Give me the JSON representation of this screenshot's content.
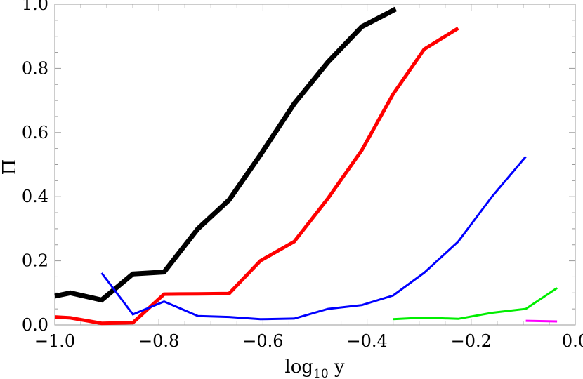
{
  "chart_data": {
    "type": "line",
    "title": "",
    "xlabel": {
      "base": "log",
      "subscript": "10",
      "rest": " y"
    },
    "ylabel": "Π",
    "xlim": [
      -1.0,
      0.0
    ],
    "ylim": [
      0.0,
      1.0
    ],
    "grid": false,
    "legend": "none",
    "x_ticks": [
      {
        "value": -1.0,
        "label": "−1.0"
      },
      {
        "value": -0.8,
        "label": "−0.8"
      },
      {
        "value": -0.6,
        "label": "−0.6"
      },
      {
        "value": -0.4,
        "label": "−0.4"
      },
      {
        "value": -0.2,
        "label": "−0.2"
      },
      {
        "value": 0.0,
        "label": "0.0"
      }
    ],
    "y_ticks": [
      {
        "value": 0.0,
        "label": "0.0"
      },
      {
        "value": 0.2,
        "label": "0.2"
      },
      {
        "value": 0.4,
        "label": "0.4"
      },
      {
        "value": 0.6,
        "label": "0.6"
      },
      {
        "value": 0.8,
        "label": "0.8"
      },
      {
        "value": 1.0,
        "label": "1.0"
      }
    ],
    "series": [
      {
        "color": "#000000",
        "thick": true,
        "points": [
          [
            -1.0,
            0.09
          ],
          [
            -0.97,
            0.1
          ],
          [
            -0.91,
            0.078
          ],
          [
            -0.85,
            0.159
          ],
          [
            -0.79,
            0.165
          ],
          [
            -0.725,
            0.3
          ],
          [
            -0.665,
            0.39
          ],
          [
            -0.605,
            0.53
          ],
          [
            -0.54,
            0.69
          ],
          [
            -0.475,
            0.82
          ],
          [
            -0.41,
            0.93
          ],
          [
            -0.345,
            0.985
          ]
        ]
      },
      {
        "color": "#ff0000",
        "thick": true,
        "points": [
          [
            -1.0,
            0.025
          ],
          [
            -0.97,
            0.022
          ],
          [
            -0.91,
            0.005
          ],
          [
            -0.85,
            0.007
          ],
          [
            -0.79,
            0.096
          ],
          [
            -0.725,
            0.097
          ],
          [
            -0.665,
            0.098
          ],
          [
            -0.605,
            0.2
          ],
          [
            -0.54,
            0.26
          ],
          [
            -0.475,
            0.395
          ],
          [
            -0.41,
            0.545
          ],
          [
            -0.35,
            0.72
          ],
          [
            -0.29,
            0.86
          ],
          [
            -0.225,
            0.925
          ]
        ]
      },
      {
        "color": "#0000ff",
        "thick": false,
        "points": [
          [
            -0.91,
            0.162
          ],
          [
            -0.85,
            0.033
          ],
          [
            -0.79,
            0.073
          ],
          [
            -0.725,
            0.028
          ],
          [
            -0.665,
            0.025
          ],
          [
            -0.605,
            0.018
          ],
          [
            -0.54,
            0.02
          ],
          [
            -0.475,
            0.05
          ],
          [
            -0.41,
            0.062
          ],
          [
            -0.35,
            0.092
          ],
          [
            -0.29,
            0.163
          ],
          [
            -0.225,
            0.26
          ],
          [
            -0.16,
            0.4
          ],
          [
            -0.095,
            0.525
          ]
        ]
      },
      {
        "color": "#00ee00",
        "thick": false,
        "points": [
          [
            -0.35,
            0.018
          ],
          [
            -0.29,
            0.023
          ],
          [
            -0.225,
            0.019
          ],
          [
            -0.16,
            0.038
          ],
          [
            -0.095,
            0.05
          ],
          [
            -0.035,
            0.115
          ]
        ]
      },
      {
        "color": "#ff00ff",
        "thick": false,
        "points": [
          [
            -0.095,
            0.013
          ],
          [
            -0.035,
            0.011
          ]
        ]
      }
    ]
  }
}
